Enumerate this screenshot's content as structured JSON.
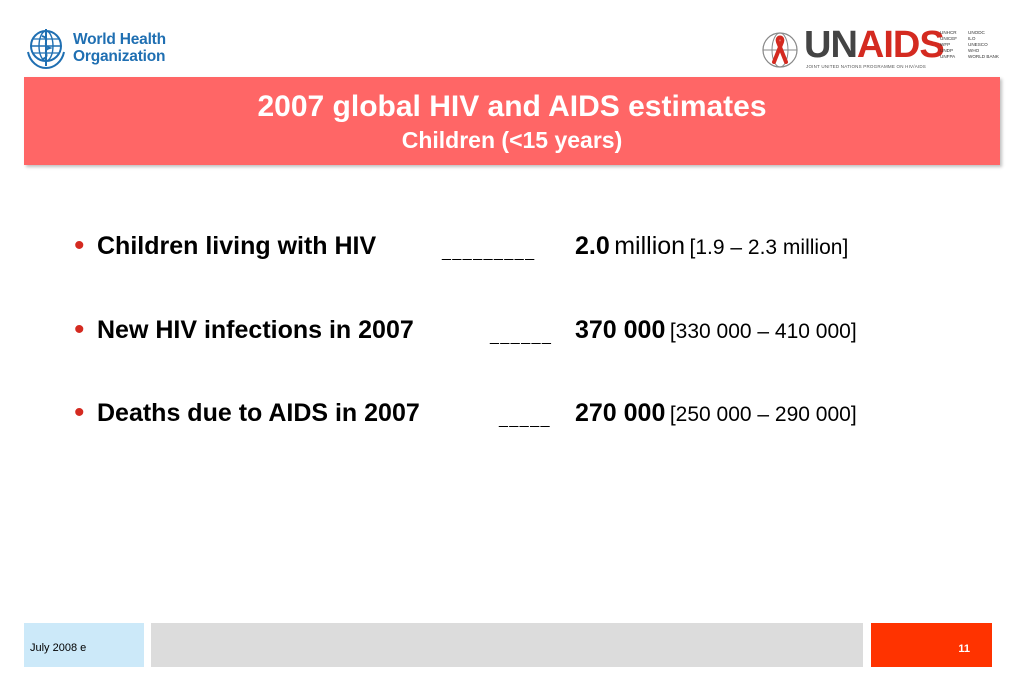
{
  "logos": {
    "who_line1": "World Health",
    "who_line2": "Organization",
    "unaids_un": "UN",
    "unaids_aids": "AIDS",
    "unaids_tagline": "JOINT UNITED NATIONS PROGRAMME ON HIV/AIDS",
    "cosponsors_col1": [
      "UNHCR",
      "UNICEF",
      "WFP",
      "UNDP",
      "UNFPA"
    ],
    "cosponsors_col2": [
      "UNODC",
      "ILO",
      "UNESCO",
      "WHO",
      "WORLD BANK"
    ]
  },
  "title": {
    "main": "2007 global HIV and AIDS estimates",
    "sub": "Children (<15 years)"
  },
  "bullets": [
    {
      "label": "Children living with HIV",
      "dashes": "_________",
      "value": "2.0",
      "unit": "million",
      "range": "[1.9 – 2.3 million]"
    },
    {
      "label": "New HIV infections in 2007",
      "dashes": "______",
      "value": "370 000",
      "unit": "",
      "range": "[330 000 – 410 000]"
    },
    {
      "label": "Deaths due to AIDS in 2007",
      "dashes": "_____",
      "value": "270 000",
      "unit": "",
      "range": "[250 000 – 290 000]"
    }
  ],
  "footer": {
    "date": "July 2008  e",
    "page": "11"
  },
  "colors": {
    "title_band": "#ff6666",
    "bullet": "#d42a20",
    "footer_left": "#cce9f9",
    "footer_mid": "#dcdcdc",
    "footer_right": "#ff3300"
  }
}
